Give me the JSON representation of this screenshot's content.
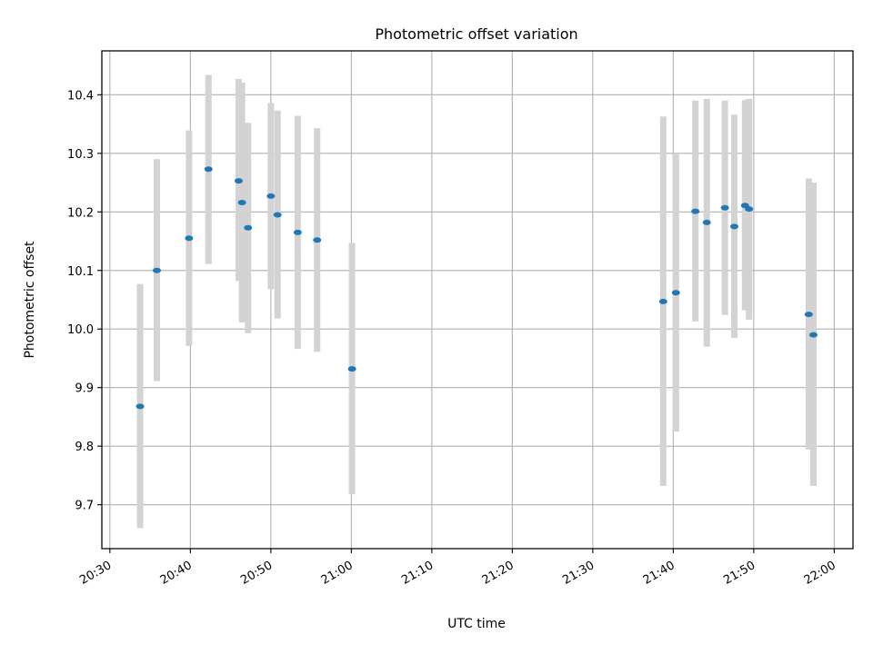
{
  "chart_data": {
    "type": "scatter",
    "title": "Photometric offset variation",
    "xlabel": "UTC time",
    "ylabel": "Photometric offset",
    "grid": true,
    "legend": "none",
    "xlim": [
      "20:29:00",
      "22:02:20"
    ],
    "ylim": [
      9.625,
      10.475
    ],
    "x_tick_labels": [
      "20:30",
      "20:40",
      "20:50",
      "21:00",
      "21:10",
      "21:20",
      "21:30",
      "21:40",
      "21:50",
      "22:00"
    ],
    "y_tick_labels": [
      "9.7",
      "9.8",
      "9.9",
      "10.0",
      "10.1",
      "10.2",
      "10.3",
      "10.4"
    ],
    "colors": {
      "point": "#1f77b4",
      "errorbar": "#d3d3d3",
      "grid": "#b0b0b0"
    },
    "series": [
      {
        "points": [
          {
            "x": "20:33:45",
            "y": 9.868,
            "lo": 9.66,
            "hi": 10.077
          },
          {
            "x": "20:35:50",
            "y": 10.1,
            "lo": 9.911,
            "hi": 10.29
          },
          {
            "x": "20:39:50",
            "y": 10.155,
            "lo": 9.971,
            "hi": 10.339
          },
          {
            "x": "20:42:15",
            "y": 10.273,
            "lo": 10.111,
            "hi": 10.434
          },
          {
            "x": "20:46:00",
            "y": 10.253,
            "lo": 10.082,
            "hi": 10.427
          },
          {
            "x": "20:46:25",
            "y": 10.216,
            "lo": 10.011,
            "hi": 10.421
          },
          {
            "x": "20:47:10",
            "y": 10.173,
            "lo": 9.993,
            "hi": 10.352
          },
          {
            "x": "20:50:00",
            "y": 10.227,
            "lo": 10.068,
            "hi": 10.386
          },
          {
            "x": "20:50:50",
            "y": 10.195,
            "lo": 10.018,
            "hi": 10.373
          },
          {
            "x": "20:53:20",
            "y": 10.165,
            "lo": 9.966,
            "hi": 10.364
          },
          {
            "x": "20:55:45",
            "y": 10.152,
            "lo": 9.961,
            "hi": 10.343
          },
          {
            "x": "21:00:05",
            "y": 9.932,
            "lo": 9.718,
            "hi": 10.147
          },
          {
            "x": "21:38:45",
            "y": 10.047,
            "lo": 9.732,
            "hi": 10.363
          },
          {
            "x": "21:40:20",
            "y": 10.062,
            "lo": 9.825,
            "hi": 10.3
          },
          {
            "x": "21:42:45",
            "y": 10.201,
            "lo": 10.013,
            "hi": 10.39
          },
          {
            "x": "21:44:10",
            "y": 10.182,
            "lo": 9.97,
            "hi": 10.393
          },
          {
            "x": "21:46:25",
            "y": 10.207,
            "lo": 10.024,
            "hi": 10.39
          },
          {
            "x": "21:47:35",
            "y": 10.175,
            "lo": 9.985,
            "hi": 10.366
          },
          {
            "x": "21:48:55",
            "y": 10.211,
            "lo": 10.032,
            "hi": 10.391
          },
          {
            "x": "21:49:25",
            "y": 10.205,
            "lo": 10.016,
            "hi": 10.393
          },
          {
            "x": "21:56:50",
            "y": 10.025,
            "lo": 9.794,
            "hi": 10.257
          },
          {
            "x": "21:57:25",
            "y": 9.99,
            "lo": 9.732,
            "hi": 10.25
          }
        ]
      }
    ]
  }
}
